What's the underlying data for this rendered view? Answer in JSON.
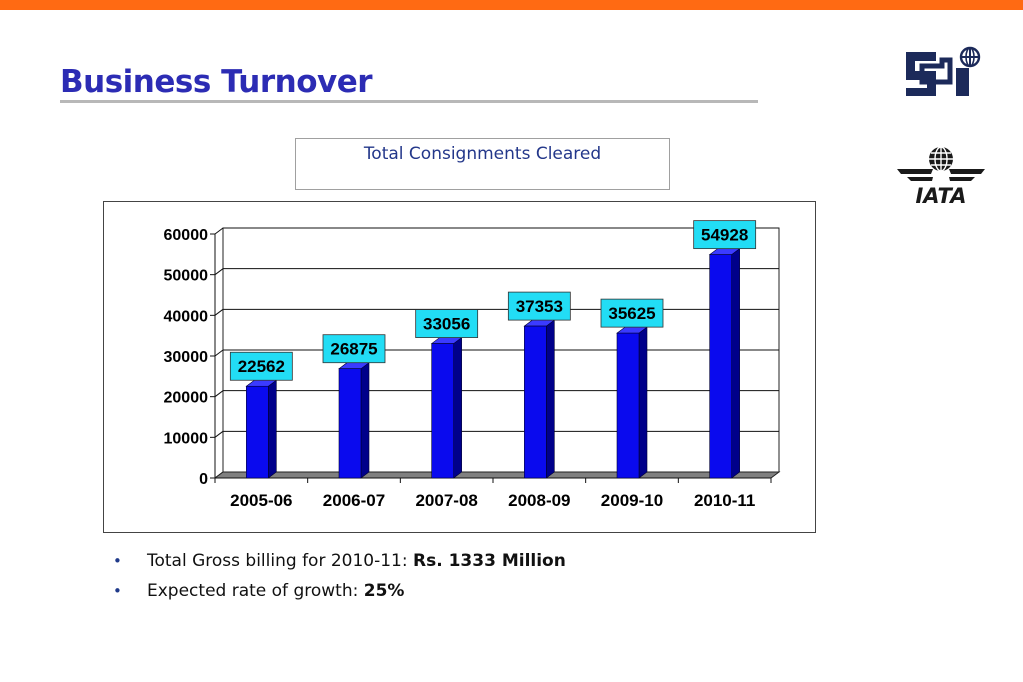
{
  "header": {
    "title": "Business Turnover"
  },
  "logos": {
    "si": "SI logo",
    "iata_text": "IATA"
  },
  "colors": {
    "top_bar": "#ff6a13",
    "title": "#2c2cb4",
    "bar": "#0a0aee",
    "label_bg": "#22ddf5"
  },
  "bullets": [
    {
      "text": "Total Gross billing for 2010-11: ",
      "strong": "Rs. 1333 Million"
    },
    {
      "text": "Expected rate of growth: ",
      "strong": "25%"
    }
  ],
  "chart_data": {
    "type": "bar",
    "title": "Total Consignments Cleared",
    "categories": [
      "2005-06",
      "2006-07",
      "2007-08",
      "2008-09",
      "2009-10",
      "2010-11"
    ],
    "values": [
      22562,
      26875,
      33056,
      37353,
      35625,
      54928
    ],
    "data_labels": [
      "22562",
      "26875",
      "33056",
      "37353",
      "35625",
      "54928"
    ],
    "ylim": [
      0,
      60000
    ],
    "yticks": [
      0,
      10000,
      20000,
      30000,
      40000,
      50000,
      60000
    ],
    "ytick_labels": [
      "0",
      "10000",
      "20000",
      "30000",
      "40000",
      "50000",
      "60000"
    ],
    "grid": true,
    "legend": "none"
  }
}
